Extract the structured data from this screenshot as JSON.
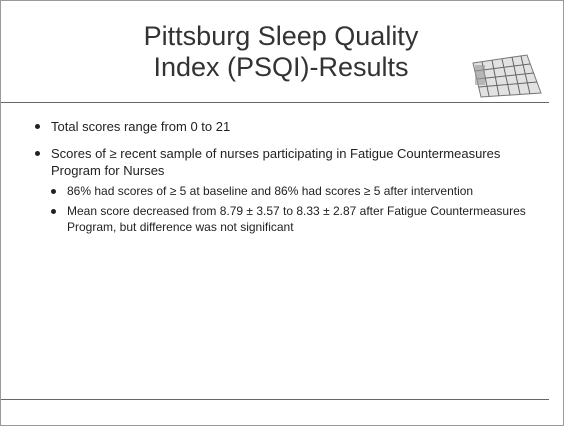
{
  "header": {
    "title_lines": [
      "Pittsburg Sleep Quality",
      "Index (PSQI)-Results"
    ]
  },
  "bullets": [
    {
      "text": "Total scores range from 0 to 21",
      "sub": []
    },
    {
      "text": "Scores of ≥ recent sample of nurses participating in Fatigue Countermeasures Program for Nurses",
      "sub": [
        "86% had scores of ≥ 5 at baseline and 86% had scores ≥ 5 after intervention",
        "Mean score decreased from 8.79 ± 3.57 to 8.33 ± 2.87 after Fatigue Countermeasures Program, but difference was not significant"
      ]
    }
  ]
}
